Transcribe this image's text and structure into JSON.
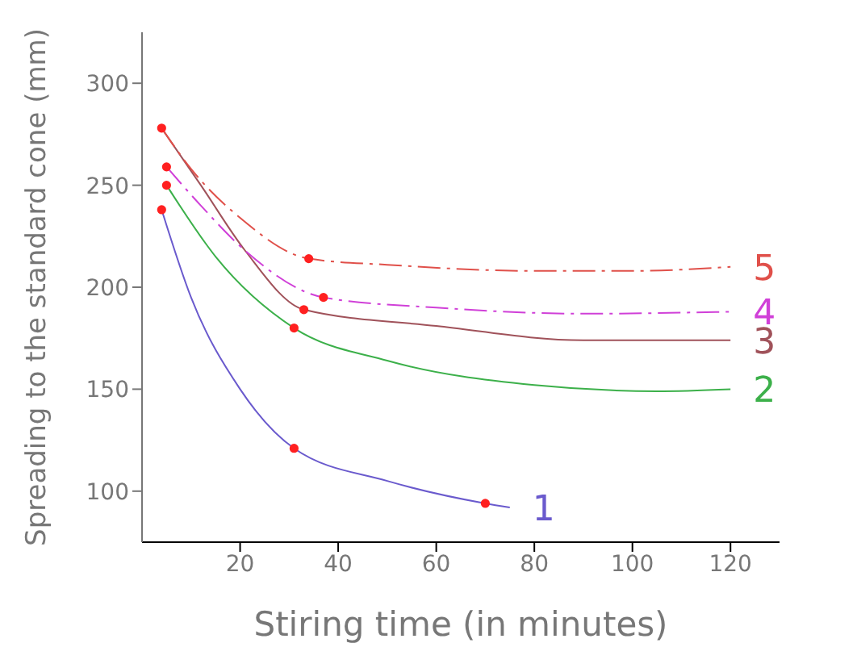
{
  "chart_data": {
    "type": "line",
    "xlabel": "Stiring time (in minutes)",
    "ylabel": "Spreading to the standard cone (mm)",
    "xlim": [
      0,
      130
    ],
    "xticks": [
      20,
      40,
      60,
      80,
      100,
      120
    ],
    "ylim": [
      75,
      325
    ],
    "yticks": [
      100,
      150,
      200,
      250,
      300
    ],
    "grid": false,
    "legend": false,
    "marker": "none",
    "series": [
      {
        "name": "1",
        "color": "#6a5acd",
        "line_style": "solid",
        "x": [
          4,
          10,
          20,
          31,
          50,
          70,
          75
        ],
        "values": [
          238,
          195,
          150,
          121,
          105,
          94,
          92
        ]
      },
      {
        "name": "2",
        "color": "#3cb04a",
        "line_style": "solid",
        "x": [
          5,
          15,
          31,
          50,
          80,
          105,
          120
        ],
        "values": [
          250,
          215,
          180,
          164,
          152,
          149,
          150
        ]
      },
      {
        "name": "3",
        "color": "#a0525a",
        "line_style": "solid",
        "x": [
          4,
          12,
          21,
          33,
          60,
          90,
          120
        ],
        "values": [
          278,
          250,
          218,
          189,
          181,
          174,
          174
        ]
      },
      {
        "name": "4",
        "color": "#d040d8",
        "line_style": "dashed",
        "x": [
          5,
          12,
          21,
          37,
          60,
          90,
          120
        ],
        "values": [
          259,
          240,
          218,
          195,
          190,
          187,
          188
        ]
      },
      {
        "name": "5",
        "color": "#e0504a",
        "line_style": "dashed",
        "x": [
          4,
          10,
          20,
          34,
          50,
          80,
          100,
          120
        ],
        "values": [
          278,
          258,
          234,
          214,
          211,
          208,
          208,
          210
        ]
      },
      {
        "type": "scatter",
        "color": "#ff2020",
        "marker": "circle",
        "x": [
          4,
          31,
          70,
          5,
          31,
          33,
          5,
          37,
          4,
          34
        ],
        "values": [
          238,
          121,
          94,
          250,
          180,
          189,
          259,
          195,
          278,
          214
        ]
      }
    ]
  }
}
